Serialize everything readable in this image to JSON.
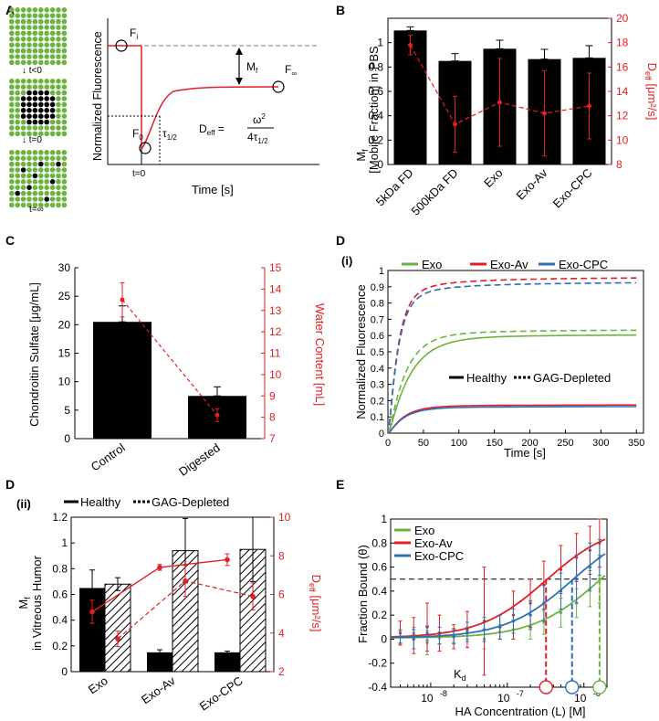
{
  "colors": {
    "green": "#6cb33f",
    "red": "#e31e24",
    "blue": "#2e6eb5",
    "black": "#000000",
    "gray": "#666666"
  },
  "panels": {
    "A": {
      "letter": "A",
      "time_labels": [
        "t<0",
        "t=0",
        "t=∞"
      ],
      "ylabel": "Normalized Fluorescence",
      "xlabel": "Time [s]",
      "F_i": "F",
      "F_i_sub": "i",
      "F_0": "F",
      "F_0_sub": "0",
      "F_inf": "F",
      "F_inf_sub": "∞",
      "M_f": "M",
      "M_f_sub": "f",
      "tau": "τ",
      "tau_sub": "1/2",
      "t0": "t=0",
      "deff": "D",
      "deff_sub": "eff",
      "eq_sign": "=",
      "numerator": "ω",
      "numerator_sup": "2",
      "denominator": "4τ",
      "denominator_sub": "1/2"
    },
    "B": {
      "letter": "B",
      "chart_data": {
        "type": "bar",
        "categories": [
          "5kDa FD",
          "500kDa FD",
          "Exo",
          "Exo-Av",
          "Exo-CPC"
        ],
        "series": [
          {
            "name": "Mf",
            "axis": "left",
            "values": [
              1.1,
              0.85,
              0.95,
              0.865,
              0.875
            ],
            "errors": [
              0.03,
              0.06,
              0.07,
              0.08,
              0.1
            ]
          },
          {
            "name": "Deff",
            "axis": "right",
            "values": [
              17.8,
              11.3,
              13.1,
              12.2,
              12.8
            ],
            "errors": [
              0.8,
              2.3,
              3.6,
              3.5,
              2.7
            ]
          }
        ],
        "ylabel_line1": "[Mobile Fraction] in PBS",
        "ylabel_main": "M",
        "ylabel_sub": "f",
        "y2label": "D",
        "y2label_sub": "eff",
        "y2label_unit": "[μm²/s]",
        "ylim": [
          0,
          1.2
        ],
        "y2lim": [
          8,
          20
        ],
        "yticks": [
          "0",
          "0.2",
          "0.4",
          "0.6",
          "0.8",
          "1"
        ],
        "y2ticks": [
          "8",
          "10",
          "12",
          "14",
          "16",
          "18",
          "20"
        ]
      }
    },
    "C": {
      "letter": "C",
      "chart_data": {
        "type": "bar",
        "categories": [
          "Control",
          "Digested"
        ],
        "series": [
          {
            "name": "Chondroitin Sulfate",
            "axis": "left",
            "values": [
              20.5,
              7.5
            ],
            "errors": [
              2.8,
              1.6
            ]
          },
          {
            "name": "Water Content",
            "axis": "right",
            "values": [
              13.5,
              8.1
            ],
            "errors": [
              0.8,
              0.3
            ]
          }
        ],
        "ylabel": "Chondroitin Sulfate [μg/mL]",
        "y2label": "Water Content [mL]",
        "ylim": [
          0,
          30
        ],
        "y2lim": [
          7,
          15
        ],
        "yticks": [
          "0",
          "5",
          "10",
          "15",
          "20",
          "25",
          "30"
        ],
        "y2ticks": [
          "7",
          "8",
          "9",
          "10",
          "11",
          "12",
          "13",
          "14",
          "15"
        ]
      }
    },
    "D": {
      "letter": "D",
      "sub": "(i)",
      "chart_data": {
        "type": "line",
        "legend": [
          "Exo",
          "Exo-Av",
          "Exo-CPC"
        ],
        "legend2": [
          "Healthy",
          "GAG-Depleted"
        ],
        "series": [
          {
            "name": "Exo",
            "style": "solid",
            "plateau": 0.61,
            "k": 0.035
          },
          {
            "name": "Exo",
            "style": "dashed",
            "plateau": 0.64,
            "k": 0.045
          },
          {
            "name": "Exo-Av",
            "style": "solid",
            "plateau": 0.175,
            "k": 0.05
          },
          {
            "name": "Exo-Av",
            "style": "dashed",
            "plateau": 0.965,
            "k": 0.085
          },
          {
            "name": "Exo-CPC",
            "style": "solid",
            "plateau": 0.165,
            "k": 0.05
          },
          {
            "name": "Exo-CPC",
            "style": "dashed",
            "plateau": 0.935,
            "k": 0.085
          }
        ],
        "xlabel": "Time [s]",
        "ylabel": "Normalized Fluorescence",
        "xlim": [
          0,
          360
        ],
        "ylim": [
          0,
          1
        ],
        "xticks": [
          "0",
          "50",
          "100",
          "150",
          "200",
          "250",
          "300",
          "350"
        ],
        "yticks": [
          "0",
          "0.1",
          "0.2",
          "0.3",
          "0.4",
          "0.5",
          "0.6",
          "0.7",
          "0.8",
          "0.9",
          "1"
        ]
      }
    },
    "Dii": {
      "letter": "D",
      "sub": "(ii)",
      "legend": [
        "Healthy",
        "GAG-Depleted"
      ],
      "chart_data": {
        "type": "bar",
        "categories": [
          "Exo",
          "Exo-Av",
          "Exo-CPC"
        ],
        "series": [
          {
            "name": "Mf Healthy",
            "axis": "left",
            "values": [
              0.65,
              0.15,
              0.15
            ],
            "errors": [
              0.14,
              0.02,
              0.01
            ]
          },
          {
            "name": "Mf GAG-Depleted",
            "axis": "left",
            "values": [
              0.68,
              0.94,
              0.95
            ],
            "errors": [
              0.05,
              0.25,
              0.25
            ]
          },
          {
            "name": "Deff Healthy",
            "axis": "right",
            "values": [
              5.1,
              7.4,
              7.8
            ],
            "errors": [
              0.6,
              0.15,
              0.3
            ]
          },
          {
            "name": "Deff GAG-Depleted",
            "axis": "right",
            "values": [
              3.7,
              6.7,
              5.9
            ],
            "errors": [
              0.4,
              0.8,
              0.7
            ]
          }
        ],
        "ylabel_main": "M",
        "ylabel_sub": "f",
        "ylabel_line2": "in Vitreous Humor",
        "y2label": "D",
        "y2label_sub": "eff",
        "y2label_unit": "[μm²/s]",
        "ylim": [
          0,
          1.2
        ],
        "y2lim": [
          2,
          10
        ],
        "yticks": [
          "0",
          "0.2",
          "0.4",
          "0.6",
          "0.8",
          "1",
          "1.2"
        ],
        "y2ticks": [
          "2",
          "4",
          "6",
          "8",
          "10"
        ]
      }
    },
    "E": {
      "letter": "E",
      "kd_label": "K",
      "kd_sub": "d",
      "chart_data": {
        "type": "line",
        "xscale": "log",
        "legend": [
          "Exo",
          "Exo-Av",
          "Exo-CPC"
        ],
        "xlabel": "HA Concentration (L) [M]",
        "ylabel": "Fraction Bound (θ)",
        "xlim": [
          3e-09,
          2e-06
        ],
        "ylim": [
          -0.4,
          1
        ],
        "xticks": [
          "10",
          "10",
          "10"
        ],
        "xtick_exps": [
          "-8",
          "-7",
          "-6"
        ],
        "yticks": [
          "-0.4",
          "-0.2",
          "0",
          "0.2",
          "0.4",
          "0.6",
          "0.8",
          "1"
        ],
        "kd": {
          "Exo": 1.6e-06,
          "Exo-Av": 3.2e-07,
          "Exo-CPC": 7e-07
        },
        "reference_line": 0.5,
        "series": [
          {
            "name": "Exo",
            "kd": 1.6e-06,
            "x": [
              4e-09,
              6e-09,
              9e-09,
              1.3e-08,
              2e-08,
              3e-08,
              5e-08,
              8e-08,
              1.2e-07,
              2e-07,
              3e-07,
              5e-07,
              8e-07,
              1.2e-06,
              1.6e-06
            ],
            "y": [
              0.02,
              0.05,
              -0.03,
              0.01,
              0.03,
              0.05,
              0.0,
              0.06,
              0.08,
              0.1,
              0.14,
              0.22,
              0.3,
              0.42,
              0.5
            ],
            "err": [
              0.06,
              0.05,
              0.1,
              0.05,
              0.06,
              0.05,
              0.08,
              0.06,
              0.08,
              0.1,
              0.1,
              0.12,
              0.12,
              0.15,
              0.2
            ]
          },
          {
            "name": "Exo-Av",
            "kd": 3.2e-07,
            "x": [
              4e-09,
              6e-09,
              9e-09,
              1.3e-08,
              2e-08,
              3e-08,
              5e-08,
              8e-08,
              1.2e-07,
              2e-07,
              3e-07,
              5e-07,
              8e-07,
              1.2e-06,
              1.6e-06
            ],
            "y": [
              0.05,
              0.03,
              0.1,
              0.05,
              0.02,
              0.08,
              0.15,
              0.1,
              0.2,
              0.3,
              0.45,
              0.58,
              0.68,
              0.74,
              0.8
            ],
            "err": [
              0.1,
              0.15,
              0.2,
              0.15,
              0.1,
              0.15,
              0.45,
              0.1,
              0.2,
              0.2,
              0.2,
              0.2,
              0.2,
              0.2,
              0.2
            ]
          },
          {
            "name": "Exo-CPC",
            "kd": 7e-07,
            "x": [
              4e-09,
              6e-09,
              9e-09,
              1.3e-08,
              2e-08,
              3e-08,
              5e-08,
              8e-08,
              1.2e-07,
              2e-07,
              3e-07,
              5e-07,
              8e-07,
              1.2e-06,
              1.6e-06
            ],
            "y": [
              0.02,
              0.0,
              0.05,
              0.03,
              0.02,
              0.06,
              0.08,
              0.1,
              0.15,
              0.2,
              0.3,
              0.4,
              0.5,
              0.6,
              0.68
            ],
            "err": [
              0.05,
              0.08,
              0.06,
              0.07,
              0.06,
              0.08,
              0.1,
              0.1,
              0.1,
              0.12,
              0.15,
              0.15,
              0.2,
              0.2,
              0.15
            ]
          }
        ]
      }
    }
  }
}
